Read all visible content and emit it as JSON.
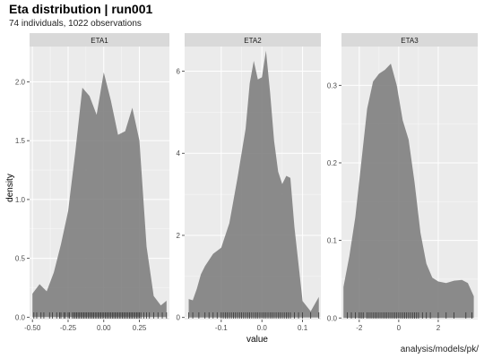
{
  "title": "Eta distribution | run001",
  "subtitle": "74 individuals, 1022 observations",
  "caption": "analysis/models/pk/",
  "colors": {
    "panel_bg": "#ebebeb",
    "strip_bg": "#d9d9d9",
    "grid": "#ffffff",
    "density_fill": "#808080",
    "rug": "#333333"
  },
  "chart_data": {
    "type": "area",
    "xlabel": "value",
    "ylabel": "density",
    "grid": true,
    "facets": [
      {
        "name": "ETA1",
        "xlim": [
          -0.52,
          0.46
        ],
        "ylim": [
          -0.02,
          2.3
        ],
        "xticks": [
          -0.5,
          -0.25,
          0.0,
          0.25
        ],
        "xtick_labels": [
          "-0.50",
          "-0.25",
          "0.00",
          "0.25"
        ],
        "yticks": [
          0.0,
          0.5,
          1.0,
          1.5,
          2.0
        ],
        "ytick_labels": [
          "0.0",
          "0.5",
          "1.0",
          "1.5",
          "2.0"
        ],
        "x": [
          -0.5,
          -0.45,
          -0.4,
          -0.35,
          -0.3,
          -0.25,
          -0.2,
          -0.15,
          -0.1,
          -0.05,
          0.0,
          0.05,
          0.1,
          0.15,
          0.2,
          0.25,
          0.3,
          0.35,
          0.4,
          0.44
        ],
        "y": [
          0.2,
          0.28,
          0.22,
          0.38,
          0.62,
          0.9,
          1.4,
          1.95,
          1.88,
          1.72,
          2.08,
          1.84,
          1.55,
          1.58,
          1.78,
          1.5,
          0.6,
          0.18,
          0.1,
          0.14
        ],
        "rug": [
          -0.49,
          -0.47,
          -0.44,
          -0.42,
          -0.38,
          -0.36,
          -0.33,
          -0.31,
          -0.3,
          -0.28,
          -0.27,
          -0.25,
          -0.24,
          -0.22,
          -0.21,
          -0.2,
          -0.19,
          -0.18,
          -0.17,
          -0.16,
          -0.15,
          -0.14,
          -0.13,
          -0.12,
          -0.11,
          -0.1,
          -0.09,
          -0.08,
          -0.07,
          -0.06,
          -0.05,
          -0.04,
          -0.03,
          -0.02,
          -0.01,
          0.0,
          0.01,
          0.02,
          0.03,
          0.04,
          0.05,
          0.06,
          0.07,
          0.08,
          0.09,
          0.1,
          0.11,
          0.12,
          0.13,
          0.14,
          0.15,
          0.16,
          0.17,
          0.18,
          0.19,
          0.2,
          0.21,
          0.22,
          0.23,
          0.24,
          0.25,
          0.26,
          0.28,
          0.3,
          0.32,
          0.35,
          0.38,
          0.41,
          0.44
        ]
      },
      {
        "name": "ETA2",
        "xlim": [
          -0.19,
          0.145
        ],
        "ylim": [
          -0.05,
          6.6
        ],
        "xticks": [
          -0.1,
          0.0,
          0.1
        ],
        "xtick_labels": [
          "-0.1",
          "0.0",
          "0.1"
        ],
        "yticks": [
          0,
          2,
          4,
          6
        ],
        "ytick_labels": [
          "0",
          "2",
          "4",
          "6"
        ],
        "x": [
          -0.18,
          -0.17,
          -0.16,
          -0.15,
          -0.14,
          -0.12,
          -0.1,
          -0.08,
          -0.06,
          -0.04,
          -0.03,
          -0.02,
          -0.01,
          0.0,
          0.01,
          0.02,
          0.03,
          0.04,
          0.05,
          0.06,
          0.07,
          0.08,
          0.1,
          0.12,
          0.14
        ],
        "y": [
          0.45,
          0.42,
          0.7,
          1.05,
          1.25,
          1.55,
          1.7,
          2.3,
          3.4,
          4.6,
          5.7,
          6.25,
          5.8,
          5.85,
          6.5,
          5.5,
          4.3,
          3.55,
          3.25,
          3.45,
          3.4,
          2.2,
          0.4,
          0.15,
          0.5
        ],
        "rug": [
          -0.18,
          -0.17,
          -0.155,
          -0.14,
          -0.13,
          -0.12,
          -0.11,
          -0.1,
          -0.095,
          -0.09,
          -0.085,
          -0.08,
          -0.075,
          -0.07,
          -0.065,
          -0.06,
          -0.055,
          -0.05,
          -0.045,
          -0.04,
          -0.035,
          -0.03,
          -0.025,
          -0.02,
          -0.015,
          -0.01,
          -0.005,
          0.0,
          0.005,
          0.01,
          0.015,
          0.02,
          0.025,
          0.03,
          0.035,
          0.04,
          0.045,
          0.05,
          0.055,
          0.06,
          0.065,
          0.07,
          0.08,
          0.09,
          0.1,
          0.12,
          0.14
        ]
      },
      {
        "name": "ETA3",
        "xlim": [
          -2.9,
          4.0
        ],
        "ylim": [
          -0.002,
          0.35
        ],
        "xticks": [
          -2,
          0,
          2
        ],
        "xtick_labels": [
          "-2",
          "0",
          "2"
        ],
        "yticks": [
          0.0,
          0.1,
          0.2,
          0.3
        ],
        "ytick_labels": [
          "0.0",
          "0.1",
          "0.2",
          "0.3"
        ],
        "x": [
          -2.8,
          -2.5,
          -2.2,
          -1.9,
          -1.6,
          -1.3,
          -1.0,
          -0.7,
          -0.4,
          -0.1,
          0.2,
          0.5,
          0.8,
          1.1,
          1.4,
          1.7,
          2.0,
          2.4,
          2.8,
          3.2,
          3.5,
          3.8
        ],
        "y": [
          0.04,
          0.08,
          0.13,
          0.2,
          0.27,
          0.305,
          0.315,
          0.32,
          0.328,
          0.3,
          0.255,
          0.23,
          0.175,
          0.11,
          0.07,
          0.052,
          0.047,
          0.045,
          0.048,
          0.049,
          0.045,
          0.028
        ],
        "rug": [
          -2.6,
          -2.4,
          -2.2,
          -2.0,
          -1.9,
          -1.8,
          -1.6,
          -1.5,
          -1.4,
          -1.3,
          -1.2,
          -1.1,
          -1.0,
          -0.9,
          -0.8,
          -0.7,
          -0.6,
          -0.5,
          -0.4,
          -0.3,
          -0.2,
          -0.1,
          0.0,
          0.1,
          0.2,
          0.3,
          0.4,
          0.5,
          0.6,
          0.7,
          0.8,
          0.9,
          1.0,
          1.2,
          1.4,
          1.6,
          2.0,
          2.4,
          2.8,
          3.4,
          3.7
        ]
      }
    ]
  }
}
